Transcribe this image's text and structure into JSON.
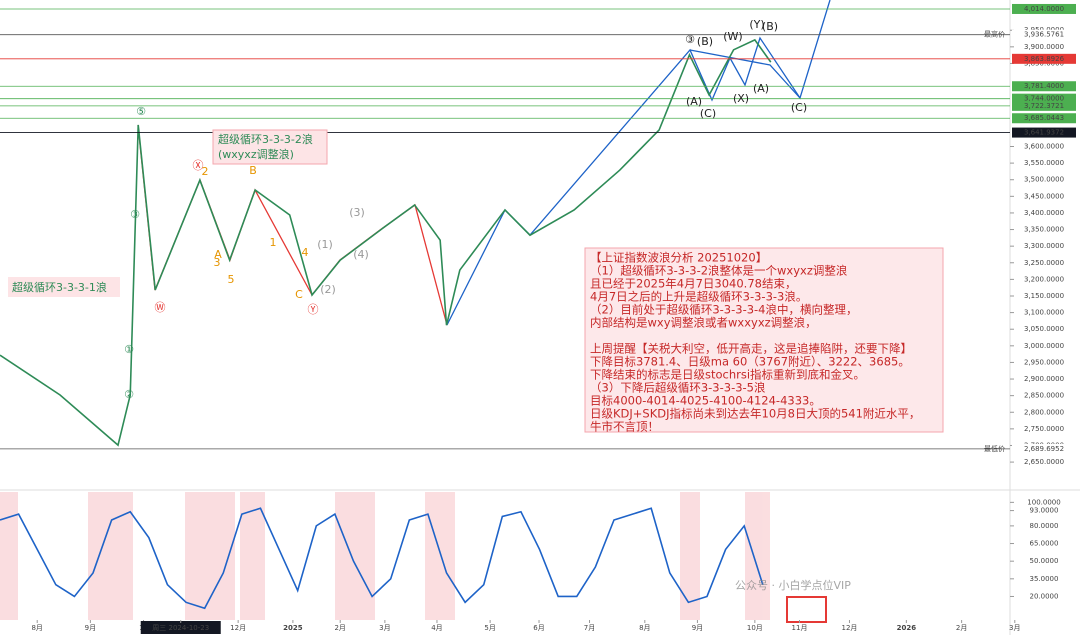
{
  "chart_data": [
    {
      "type": "line",
      "title_left": "超级循环3-3-3-1浪",
      "title_mid": [
        "超级循环3-3-3-2浪",
        "(wxyxz调整浪)"
      ],
      "xlim": [
        -0.7,
        18.3
      ],
      "ylim": [
        2572,
        4041
      ],
      "yticks": [
        {
          "value": 2650,
          "label": "2,650.0000"
        },
        {
          "value": 2700,
          "label": "2,700.0000"
        },
        {
          "value": 2750,
          "label": "2,750.0000"
        },
        {
          "value": 2800,
          "label": "2,800.0000"
        },
        {
          "value": 2850,
          "label": "2,850.0000"
        },
        {
          "value": 2900,
          "label": "2,900.0000"
        },
        {
          "value": 2950,
          "label": "2,950.0000"
        },
        {
          "value": 3000,
          "label": "3,000.0000"
        },
        {
          "value": 3050,
          "label": "3,050.0000"
        },
        {
          "value": 3100,
          "label": "3,100.0000"
        },
        {
          "value": 3150,
          "label": "3,150.0000"
        },
        {
          "value": 3200,
          "label": "3,200.0000"
        },
        {
          "value": 3250,
          "label": "3,250.0000"
        },
        {
          "value": 3300,
          "label": "3,300.0000"
        },
        {
          "value": 3350,
          "label": "3,350.0000"
        },
        {
          "value": 3400,
          "label": "3,400.0000"
        },
        {
          "value": 3450,
          "label": "3,450.0000"
        },
        {
          "value": 3500,
          "label": "3,500.0000"
        },
        {
          "value": 3550,
          "label": "3,550.0000"
        },
        {
          "value": 3600,
          "label": "3,600.0000"
        },
        {
          "value": 3850,
          "label": "3,850.0000"
        },
        {
          "value": 3900,
          "label": "3,900.0000"
        },
        {
          "value": 3950,
          "label": "3,950.0000"
        }
      ],
      "x": [
        -0.7,
        0.43,
        1.52,
        1.75,
        1.9,
        2.22,
        3.06,
        3.62,
        4.1,
        4.75,
        5.17,
        5.7,
        6.45,
        7.1,
        7.58,
        7.7,
        7.95,
        8.8,
        9.27,
        10.1,
        10.96,
        11.7,
        12.27,
        12.64,
        13.1,
        13.5,
        13.8
      ],
      "series": [
        {
          "name": "上证指数",
          "color": "#2e8b57",
          "values": [
            2972,
            2852,
            2701,
            2852,
            3665,
            3168,
            3499,
            3258,
            3469,
            3394,
            3153,
            3258,
            3348,
            3424,
            3318,
            3062,
            3228,
            3409,
            3333,
            3409,
            3529,
            3650,
            3876,
            3755,
            3891,
            3921,
            3854
          ]
        }
      ],
      "levels": [
        {
          "value": 4014,
          "label": "4,014.0000",
          "color": "#4caf50"
        },
        {
          "value": 3936.5761,
          "label": "3,936.5761",
          "color": "#555555",
          "tag": "最高价"
        },
        {
          "value": 3863.8926,
          "label": "3,863.8926",
          "color": "#e53935"
        },
        {
          "value": 3781.4,
          "label": "3,781.4000",
          "color": "#4caf50"
        },
        {
          "value": 3744,
          "label": "3,744.0000",
          "color": "#4caf50"
        },
        {
          "value": 3722.3721,
          "label": "3,722.3721",
          "color": "#4caf50"
        },
        {
          "value": 3685.0443,
          "label": "3,685.0443",
          "color": "#4caf50"
        },
        {
          "value": 3641.9372,
          "label": "3,641.9372",
          "color": "#131722"
        },
        {
          "value": 2689.6952,
          "label": "2,689.6952",
          "color": "#555555",
          "tag": "最低价"
        }
      ],
      "waves": [
        "⑤",
        "③",
        "②",
        "①",
        "Ⓦ",
        "Ⓧ",
        "Ⓨ",
        "1",
        "2",
        "3",
        "4",
        "5",
        "A",
        "B",
        "C",
        "(1)",
        "(2)",
        "(3)",
        "(4)",
        "③",
        "(A)",
        "(B)",
        "(C)",
        "(W)",
        "(X)",
        "(Y)",
        "(A)",
        "(B)",
        "(C)"
      ],
      "notes": [
        "【上证指数波浪分析 20251020】",
        "（1）超级循环3-3-3-2浪整体是一个wxyxz调整浪",
        "且已经于2025年4月7日3040.78结束，",
        "4月7日之后的上升是超级循环3-3-3-3浪。",
        "（2）目前处于超级循环3-3-3-3-4浪中，横向整理，",
        "内部结构是wxy调整浪或者wxxyxz调整浪，",
        "上周提醒【关税大利空，低开高走，这是追捧陷阱，还要下降】",
        "下降目标3781.4、日级ma 60（3767附近）、3222、3685。",
        "下降结束的标志是日级stochrsi指标重新到底和金叉。",
        "（3）下降后超级循环3-3-3-3-5浪",
        "目标4000-4014-4025-4100-4124-4333。",
        "日级KDJ+SKDJ指标尚未到达去年10月8日大顶的541附近水平，",
        "牛市不言顶！"
      ]
    },
    {
      "type": "line",
      "xlim": [
        -0.7,
        18.3
      ],
      "ylim": [
        0,
        102
      ],
      "yticks": [
        {
          "value": 100,
          "label": "100.0000"
        },
        {
          "value": 93,
          "label": "93.0000"
        },
        {
          "value": 80,
          "label": "80.0000"
        },
        {
          "value": 65,
          "label": "65.0000"
        },
        {
          "value": 50,
          "label": "50.0000"
        },
        {
          "value": 35,
          "label": "35.0000"
        },
        {
          "value": 20,
          "label": "20.0000"
        }
      ],
      "xticks": [
        {
          "value": 0,
          "label": "8月"
        },
        {
          "value": 1,
          "label": "9月"
        },
        {
          "value": 2,
          "label": "10"
        },
        {
          "value": 2.7,
          "label": "周三 2024-10-23"
        },
        {
          "value": 3.78,
          "label": "12月"
        },
        {
          "value": 4.81,
          "label": "2025"
        },
        {
          "value": 5.7,
          "label": "2月"
        },
        {
          "value": 6.54,
          "label": "3月"
        },
        {
          "value": 7.52,
          "label": "4月"
        },
        {
          "value": 8.52,
          "label": "5月"
        },
        {
          "value": 9.44,
          "label": "6月"
        },
        {
          "value": 10.39,
          "label": "7月"
        },
        {
          "value": 11.43,
          "label": "8月"
        },
        {
          "value": 12.42,
          "label": "9月"
        },
        {
          "value": 13.5,
          "label": "10月"
        },
        {
          "value": 14.34,
          "label": "11月"
        },
        {
          "value": 15.28,
          "label": "12月"
        },
        {
          "value": 16.35,
          "label": "2026"
        },
        {
          "value": 17.39,
          "label": "2月"
        },
        {
          "value": 18.39,
          "label": "3月"
        }
      ],
      "x": [
        -0.7,
        -0.35,
        0,
        0.35,
        0.7,
        1.05,
        1.4,
        1.75,
        2.1,
        2.45,
        2.8,
        3.15,
        3.5,
        3.85,
        4.2,
        4.55,
        4.9,
        5.25,
        5.6,
        5.95,
        6.3,
        6.65,
        7,
        7.35,
        7.7,
        8.05,
        8.4,
        8.75,
        9.1,
        9.45,
        9.8,
        10.15,
        10.5,
        10.85,
        11.2,
        11.55,
        11.9,
        12.25,
        12.6,
        12.95,
        13.3,
        13.65
      ],
      "series": [
        {
          "name": "KDJ",
          "color": "#1e63c8",
          "values": [
            85,
            90,
            60,
            30,
            20,
            40,
            85,
            92,
            70,
            30,
            15,
            10,
            40,
            90,
            95,
            60,
            25,
            80,
            90,
            50,
            20,
            35,
            85,
            90,
            40,
            15,
            30,
            88,
            92,
            60,
            20,
            20,
            45,
            85,
            90,
            95,
            40,
            15,
            20,
            60,
            80,
            30
          ]
        }
      ],
      "watermark": "公众号 · 小白学点位VIP"
    }
  ]
}
